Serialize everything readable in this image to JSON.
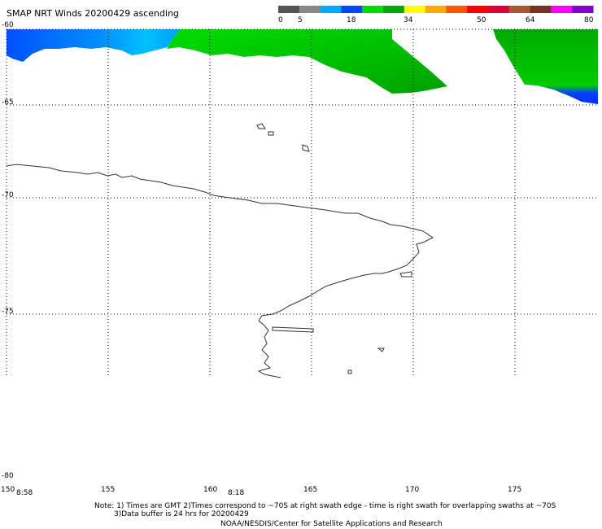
{
  "title": "SMAP NRT Winds 20200429 ascending",
  "colorbar": {
    "labels": [
      "0",
      "5",
      "18",
      "34",
      "50",
      "64",
      "80"
    ],
    "colors": [
      "#555555",
      "#888888",
      "#00aaff",
      "#0044ff",
      "#00dd00",
      "#00aa00",
      "#ffff00",
      "#ffaa00",
      "#ff5500",
      "#ff0000",
      "#dd0033",
      "#aa5533",
      "#773322",
      "#ff00ff",
      "#8800cc"
    ]
  },
  "lat_labels": [
    "-60",
    "-65",
    "-70",
    "-75",
    "-80"
  ],
  "lon_labels": [
    "150",
    "155",
    "160",
    "165",
    "170",
    "175"
  ],
  "times": [
    "8:58",
    "8:18"
  ],
  "footer": {
    "note_line1": "Note: 1) Times are GMT 2)Times correspond to ~70S at right swath edge - time is right swath for overlapping swaths at ~70S",
    "note_line2": "3)Data buffer is 24 hrs for 20200429",
    "credit": "NOAA/NESDIS/Center for Satellite Applications and Research"
  }
}
